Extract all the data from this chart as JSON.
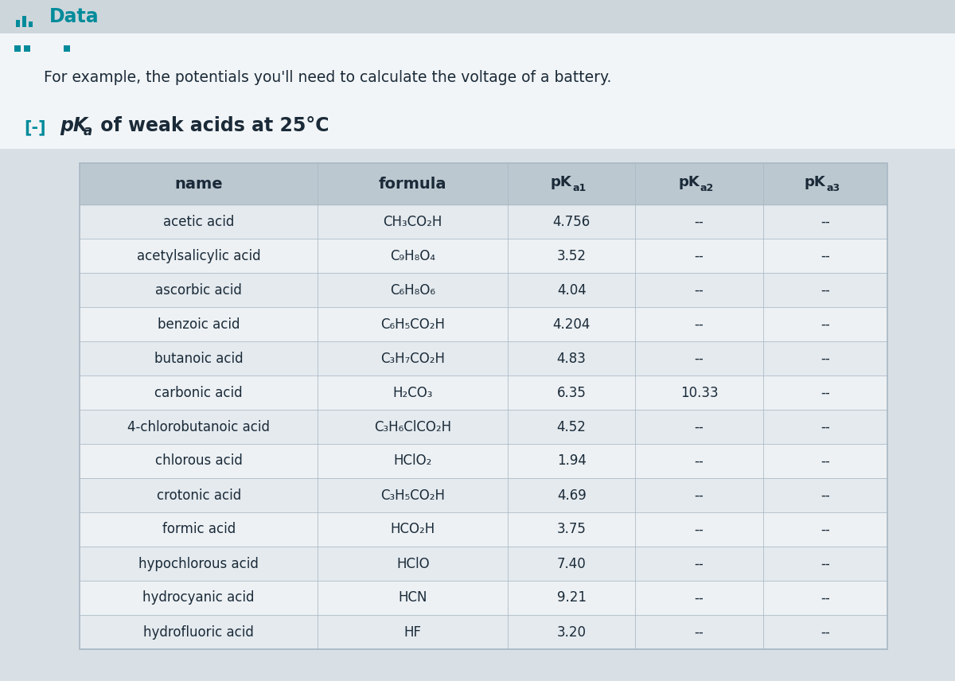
{
  "title": "Data",
  "subtitle_line": "For example, the potentials you'll need to calculate the voltage of a battery.",
  "section_prefix": "[-]",
  "rows": [
    [
      "acetic acid",
      "CH₃CO₂H",
      "4.756",
      "--",
      "--"
    ],
    [
      "acetylsalicylic acid",
      "C₉H₈O₄",
      "3.52",
      "--",
      "--"
    ],
    [
      "ascorbic acid",
      "C₆H₈O₆",
      "4.04",
      "--",
      "--"
    ],
    [
      "benzoic acid",
      "C₆H₅CO₂H",
      "4.204",
      "--",
      "--"
    ],
    [
      "butanoic acid",
      "C₃H₇CO₂H",
      "4.83",
      "--",
      "--"
    ],
    [
      "carbonic acid",
      "H₂CO₃",
      "6.35",
      "10.33",
      "--"
    ],
    [
      "4-chlorobutanoic acid",
      "C₃H₆ClCO₂H",
      "4.52",
      "--",
      "--"
    ],
    [
      "chlorous acid",
      "HClO₂",
      "1.94",
      "--",
      "--"
    ],
    [
      "crotonic acid",
      "C₃H₅CO₂H",
      "4.69",
      "--",
      "--"
    ],
    [
      "formic acid",
      "HCO₂H",
      "3.75",
      "--",
      "--"
    ],
    [
      "hypochlorous acid",
      "HClO",
      "7.40",
      "--",
      "--"
    ],
    [
      "hydrocyanic acid",
      "HCN",
      "9.21",
      "--",
      "--"
    ],
    [
      "hydrofluoric acid",
      "HF",
      "3.20",
      "--",
      "--"
    ]
  ],
  "teal_color": "#008B9B",
  "dark_text": "#1a2a38",
  "header_bg": "#bcc8d0",
  "row_bg_even": "#e4eaee",
  "row_bg_odd": "#edf1f4",
  "border_color": "#a8b8c4",
  "fig_bg": "#d8e0e6",
  "top_bar_bg": "#cdd6db",
  "white_area_bg": "#f2f5f7"
}
